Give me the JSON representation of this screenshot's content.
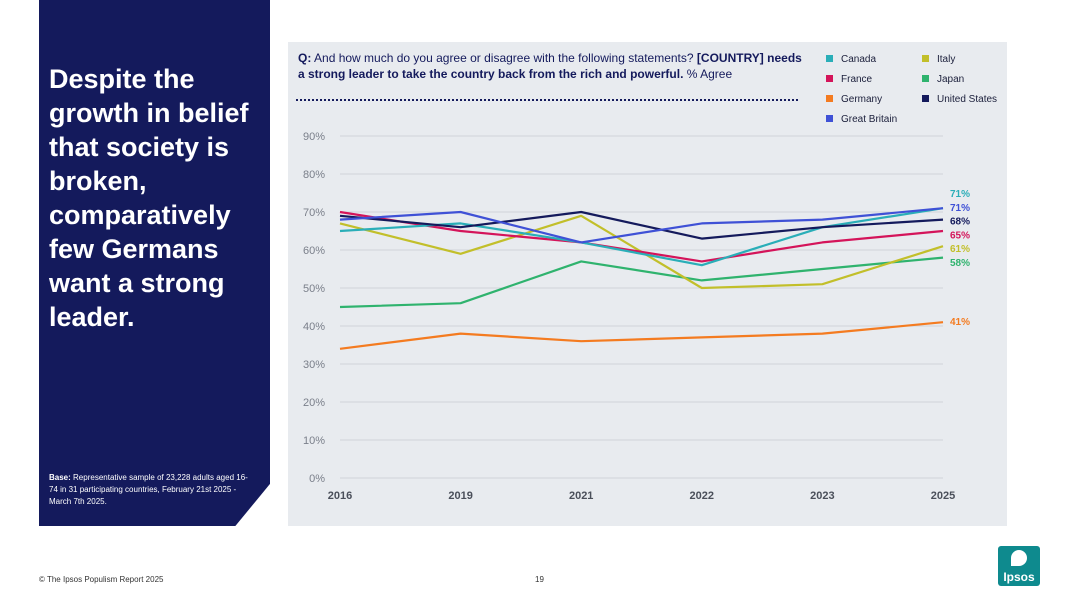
{
  "headline": "Despite the growth in belief that society is broken, comparatively few Germans want a strong leader.",
  "base": {
    "label": "Base:",
    "text": "Representative sample of 23,228 adults aged 16-74 in 31 participating countries, February 21st 2025 - March 7th 2025."
  },
  "question": {
    "prefix": "Q:",
    "text": "And how much do you agree or disagree with the following statements?",
    "bold": "[COUNTRY] needs a strong leader to take the country back from the rich and powerful.",
    "suffix": "% Agree"
  },
  "footer": {
    "source": "© The Ipsos Populism Report 2025",
    "page": "19",
    "logo": "Ipsos"
  },
  "colors": {
    "panel": "#141a5c",
    "chart_bg": "#e8ebef",
    "brand": "#0e8a8e"
  },
  "chart_data": {
    "type": "line",
    "title": "[COUNTRY] needs a strong leader to take the country back from the rich and powerful. % Agree",
    "categories": [
      "2016",
      "2019",
      "2021",
      "2022",
      "2023",
      "2025"
    ],
    "ylim": [
      0,
      90
    ],
    "yticks": [
      "0%",
      "10%",
      "20%",
      "30%",
      "40%",
      "50%",
      "60%",
      "70%",
      "80%",
      "90%"
    ],
    "ytick_values": [
      0,
      10,
      20,
      30,
      40,
      50,
      60,
      70,
      80,
      90
    ],
    "grid": true,
    "legend_position": "top-right",
    "series": [
      {
        "name": "Canada",
        "color": "#2aaeb8",
        "values": [
          65,
          67,
          62,
          56,
          66,
          71
        ],
        "end_label": "71%"
      },
      {
        "name": "France",
        "color": "#d4145a",
        "values": [
          70,
          65,
          62,
          57,
          62,
          65
        ],
        "end_label": "65%"
      },
      {
        "name": "Germany",
        "color": "#f47b20",
        "values": [
          34,
          38,
          36,
          37,
          38,
          41
        ],
        "end_label": "41%"
      },
      {
        "name": "Great Britain",
        "color": "#3f51d6",
        "values": [
          68,
          70,
          62,
          67,
          68,
          71
        ],
        "end_label": "71%"
      },
      {
        "name": "Italy",
        "color": "#c2bf2a",
        "values": [
          67,
          59,
          69,
          50,
          51,
          61
        ],
        "end_label": "61%"
      },
      {
        "name": "Japan",
        "color": "#2fb36e",
        "values": [
          45,
          46,
          57,
          52,
          55,
          58
        ],
        "end_label": "58%"
      },
      {
        "name": "United States",
        "color": "#141a5c",
        "values": [
          69,
          66,
          70,
          63,
          66,
          68
        ],
        "end_label": "68%"
      }
    ]
  }
}
